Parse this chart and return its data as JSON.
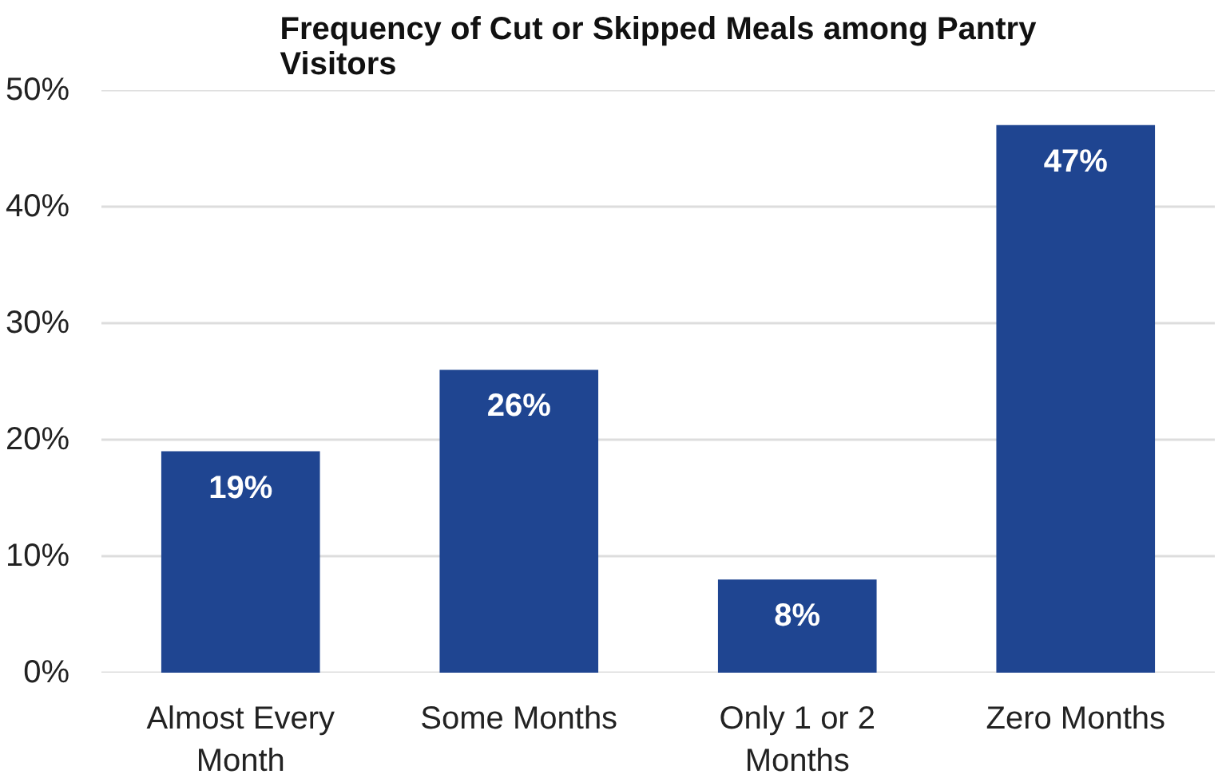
{
  "chart_data": {
    "type": "bar",
    "title": "Frequency of Cut or Skipped Meals among Pantry Visitors",
    "categories": [
      "Almost Every Month",
      "Some Months",
      "Only 1 or 2 Months",
      "Zero Months"
    ],
    "values": [
      19,
      26,
      8,
      47
    ],
    "color": "#1f4591",
    "value_labels": [
      "19%",
      "26%",
      "8%",
      "47%"
    ],
    "ylim": [
      0,
      50
    ],
    "yticks": [
      {
        "value": 0,
        "label": "0%"
      },
      {
        "value": 10,
        "label": "10%"
      },
      {
        "value": 20,
        "label": "20%"
      },
      {
        "value": 30,
        "label": "30%"
      },
      {
        "value": 40,
        "label": "40%"
      },
      {
        "value": 50,
        "label": "50%"
      }
    ],
    "grid": "y"
  }
}
